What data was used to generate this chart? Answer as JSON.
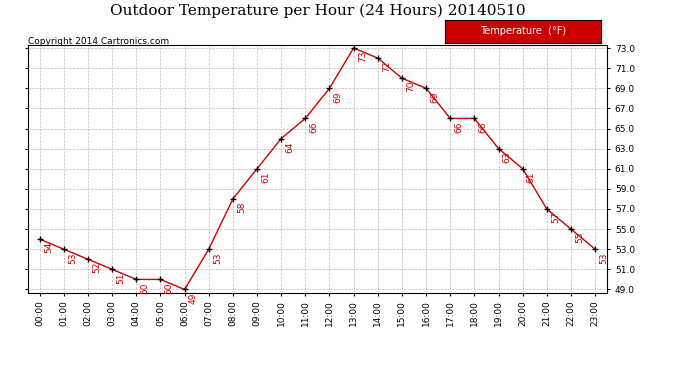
{
  "title": "Outdoor Temperature per Hour (24 Hours) 20140510",
  "copyright": "Copyright 2014 Cartronics.com",
  "legend_label": "Temperature  (°F)",
  "hours": [
    0,
    1,
    2,
    3,
    4,
    5,
    6,
    7,
    8,
    9,
    10,
    11,
    12,
    13,
    14,
    15,
    16,
    17,
    18,
    19,
    20,
    21,
    22,
    23
  ],
  "temps": [
    54,
    53,
    52,
    51,
    50,
    50,
    49,
    53,
    58,
    61,
    64,
    66,
    69,
    73,
    72,
    70,
    69,
    66,
    66,
    63,
    61,
    57,
    55,
    53
  ],
  "hour_labels": [
    "00:00",
    "01:00",
    "02:00",
    "03:00",
    "04:00",
    "05:00",
    "06:00",
    "07:00",
    "08:00",
    "09:00",
    "10:00",
    "11:00",
    "12:00",
    "13:00",
    "14:00",
    "15:00",
    "16:00",
    "17:00",
    "18:00",
    "19:00",
    "20:00",
    "21:00",
    "22:00",
    "23:00"
  ],
  "line_color": "#cc0000",
  "marker_color": "#000000",
  "grid_color": "#bbbbbb",
  "bg_color": "#ffffff",
  "ylim_min": 49.0,
  "ylim_max": 73.0,
  "yticks": [
    49.0,
    51.0,
    53.0,
    55.0,
    57.0,
    59.0,
    61.0,
    63.0,
    65.0,
    67.0,
    69.0,
    71.0,
    73.0
  ],
  "legend_bg": "#cc0000",
  "legend_text_color": "#ffffff",
  "title_fontsize": 11,
  "label_fontsize": 6.5,
  "annot_fontsize": 6.5,
  "copyright_fontsize": 6.5
}
